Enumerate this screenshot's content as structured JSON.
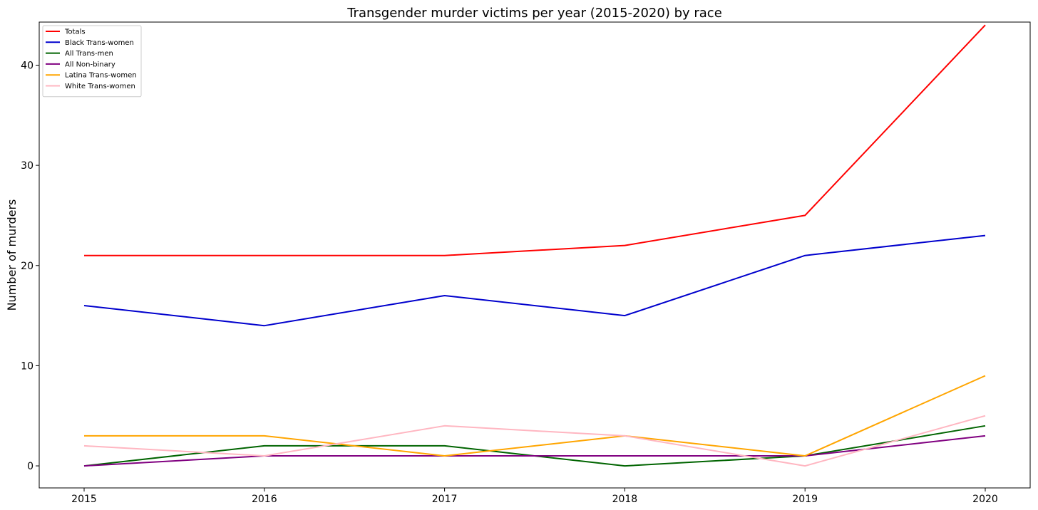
{
  "chart_data": {
    "type": "line",
    "title": "Transgender murder victims per year (2015-2020) by race",
    "xlabel": "",
    "ylabel": "Number of murders",
    "x": [
      "2015",
      "2016",
      "2017",
      "2018",
      "2019",
      "2020"
    ],
    "ylim": [
      -2.2,
      44.3
    ],
    "yticks": [
      0,
      10,
      20,
      30,
      40
    ],
    "grid": false,
    "legend_position": "top-left",
    "series": [
      {
        "name": "Totals",
        "color": "#ff0000",
        "values": [
          21,
          21,
          21,
          22,
          25,
          44
        ]
      },
      {
        "name": "Black Trans-women",
        "color": "#0000cd",
        "values": [
          16,
          14,
          17,
          15,
          21,
          23
        ]
      },
      {
        "name": "All Trans-men",
        "color": "#006400",
        "values": [
          0,
          2,
          2,
          0,
          1,
          4
        ]
      },
      {
        "name": "All Non-binary",
        "color": "#800080",
        "values": [
          0,
          1,
          1,
          1,
          1,
          3
        ]
      },
      {
        "name": "Latina Trans-women",
        "color": "#ffa500",
        "values": [
          3,
          3,
          1,
          3,
          1,
          9
        ]
      },
      {
        "name": "White Trans-women",
        "color": "#ffb6c1",
        "values": [
          2,
          1,
          4,
          3,
          0,
          5
        ]
      }
    ]
  }
}
